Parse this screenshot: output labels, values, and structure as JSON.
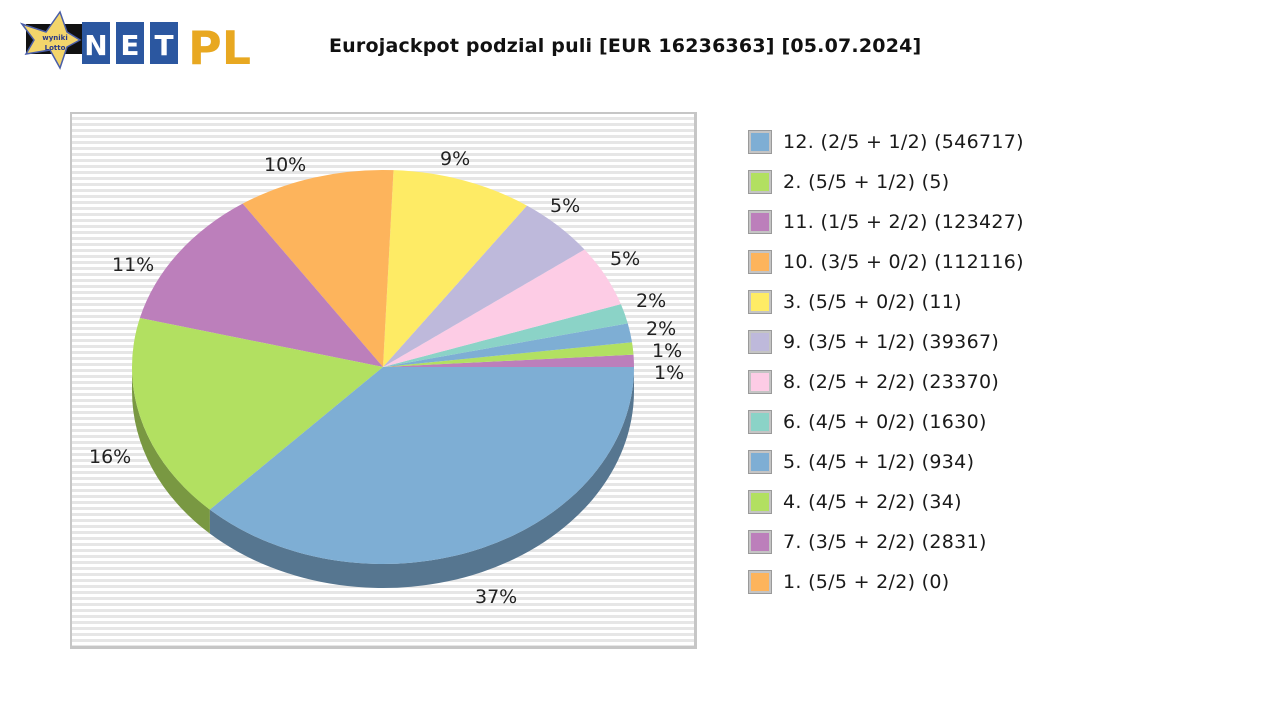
{
  "header": {
    "logo": {
      "star_text_line1": "wyniki",
      "star_text_line2": "Lotto",
      "letters": [
        "N",
        "E",
        "T"
      ],
      "suffix": "PL"
    },
    "title": "Eurojackpot podzial puli [EUR 16236363] [05.07.2024]"
  },
  "colors": {
    "blue": "#7eaed4",
    "green": "#b2e061",
    "purple": "#bc7fbb",
    "orange": "#fdb45c",
    "yellow": "#feeb65",
    "lavender": "#beb9db",
    "pink": "#fdcce5",
    "teal": "#8bd3c7"
  },
  "legend": {
    "items": [
      {
        "label": "12. (2/5 + 1/2) (546717)",
        "color": "#7eaed4"
      },
      {
        "label": "2. (5/5 + 1/2) (5)",
        "color": "#b2e061"
      },
      {
        "label": "11. (1/5 + 2/2) (123427)",
        "color": "#bc7fbb"
      },
      {
        "label": "10. (3/5 + 0/2) (112116)",
        "color": "#fdb45c"
      },
      {
        "label": "3. (5/5 + 0/2) (11)",
        "color": "#feeb65"
      },
      {
        "label": "9. (3/5 + 1/2) (39367)",
        "color": "#beb9db"
      },
      {
        "label": "8. (2/5 + 2/2) (23370)",
        "color": "#fdcce5"
      },
      {
        "label": "6. (4/5 + 0/2) (1630)",
        "color": "#8bd3c7"
      },
      {
        "label": "5. (4/5 + 1/2) (934)",
        "color": "#7eaed4"
      },
      {
        "label": "4. (4/5 + 2/2) (34)",
        "color": "#b2e061"
      },
      {
        "label": "7. (3/5 + 2/2) (2831)",
        "color": "#bc7fbb"
      },
      {
        "label": "1. (5/5 + 2/2) (0)",
        "color": "#fdb45c"
      }
    ]
  },
  "chart_data": {
    "type": "pie",
    "title": "Eurojackpot podzial puli [EUR 16236363] [05.07.2024]",
    "style": "3d-pie",
    "legend_position": "right",
    "categories": [
      "12. (2/5 + 1/2) (546717)",
      "2. (5/5 + 1/2) (5)",
      "11. (1/5 + 2/2) (123427)",
      "10. (3/5 + 0/2) (112116)",
      "3. (5/5 + 0/2) (11)",
      "9. (3/5 + 1/2) (39367)",
      "8. (2/5 + 2/2) (23370)",
      "6. (4/5 + 0/2) (1630)",
      "5. (4/5 + 1/2) (934)",
      "4. (4/5 + 2/2) (34)",
      "7. (3/5 + 2/2) (2831)",
      "1. (5/5 + 2/2) (0)"
    ],
    "values": [
      37,
      16,
      11,
      10,
      9,
      5,
      5,
      2,
      2,
      1,
      1,
      0
    ],
    "slice_labels": [
      "37%",
      "16%",
      "11%",
      "10%",
      "9%",
      "5%",
      "5%",
      "2%",
      "2%",
      "1%",
      "1%",
      ""
    ],
    "colors": [
      "#7eaed4",
      "#b2e061",
      "#bc7fbb",
      "#fdb45c",
      "#feeb65",
      "#beb9db",
      "#fdcce5",
      "#8bd3c7",
      "#7eaed4",
      "#b2e061",
      "#bc7fbb",
      "#fdb45c"
    ]
  }
}
